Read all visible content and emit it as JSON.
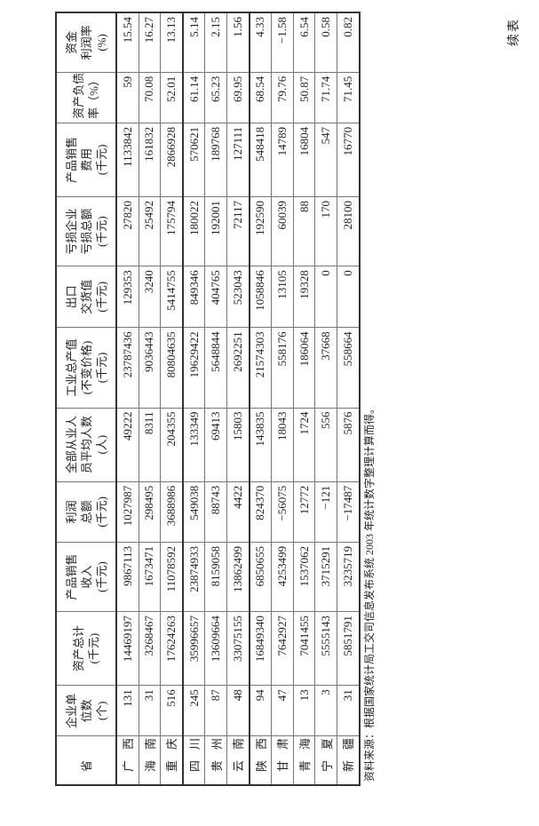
{
  "continued_label": "续表",
  "headers": [
    [
      "省 市"
    ],
    [
      "企业单",
      "位数",
      "(个)"
    ],
    [
      "资产总计",
      "(千元)"
    ],
    [
      "产品销售",
      "收入",
      "(千元)"
    ],
    [
      "利润",
      "总额",
      "(千元)"
    ],
    [
      "全部从业人",
      "员平均人数",
      "(人)"
    ],
    [
      "工业总产值",
      "(不变价格)",
      "(千元)"
    ],
    [
      "出口",
      "交货值",
      "(千元)"
    ],
    [
      "亏损企业",
      "亏损总额",
      "(千元)"
    ],
    [
      "产品销售",
      "费用",
      "(千元)"
    ],
    [
      "资产负债",
      "率（%）"
    ],
    [
      "资金",
      "利润率",
      "(%)"
    ]
  ],
  "rows": [
    [
      "广西",
      "131",
      "14469197",
      "9867113",
      "1027987",
      "49222",
      "23787436",
      "129353",
      "27820",
      "1133842",
      "59",
      "15.54"
    ],
    [
      "海南",
      "31",
      "3268467",
      "1673471",
      "298495",
      "8311",
      "9036443",
      "3240",
      "25492",
      "161832",
      "70.08",
      "16.27"
    ],
    [
      "重庆",
      "516",
      "17624263",
      "11078592",
      "3688986",
      "204355",
      "80804635",
      "5414755",
      "175794",
      "2866928",
      "52.01",
      "13.13"
    ],
    [
      "四川",
      "245",
      "35996657",
      "23874933",
      "549038",
      "133349",
      "19629422",
      "849346",
      "180022",
      "570621",
      "61.14",
      "5.14"
    ],
    [
      "贵州",
      "87",
      "13609664",
      "8159058",
      "88743",
      "69413",
      "5648844",
      "404765",
      "192001",
      "189768",
      "65.23",
      "2.15"
    ],
    [
      "云南",
      "48",
      "33075155",
      "13862499",
      "4422",
      "15803",
      "2692251",
      "523043",
      "72117",
      "127111",
      "69.95",
      "1.56"
    ],
    [
      "陕西",
      "94",
      "16849340",
      "6850655",
      "824370",
      "143835",
      "21574303",
      "1058846",
      "192590",
      "548418",
      "68.54",
      "4.33"
    ],
    [
      "甘肃",
      "47",
      "7642927",
      "4253499",
      "−56075",
      "18043",
      "558176",
      "13105",
      "60039",
      "14789",
      "79.76",
      "−1.58"
    ],
    [
      "青海",
      "13",
      "7041455",
      "1537062",
      "12772",
      "1724",
      "186064",
      "19328",
      "88",
      "16804",
      "50.87",
      "6.54"
    ],
    [
      "宁夏",
      "3",
      "5555143",
      "3715291",
      "−121",
      "556",
      "37668",
      "0",
      "170",
      "547",
      "71.74",
      "0.58"
    ],
    [
      "新疆",
      "31",
      "5851791",
      "3235719",
      "−17487",
      "5876",
      "558664",
      "0",
      "28100",
      "16770",
      "71.45",
      "0.82"
    ]
  ],
  "source_note": "资料来源：根据国家统计局工交司信息发布系统 2003 年统计数字整理计算而得。"
}
